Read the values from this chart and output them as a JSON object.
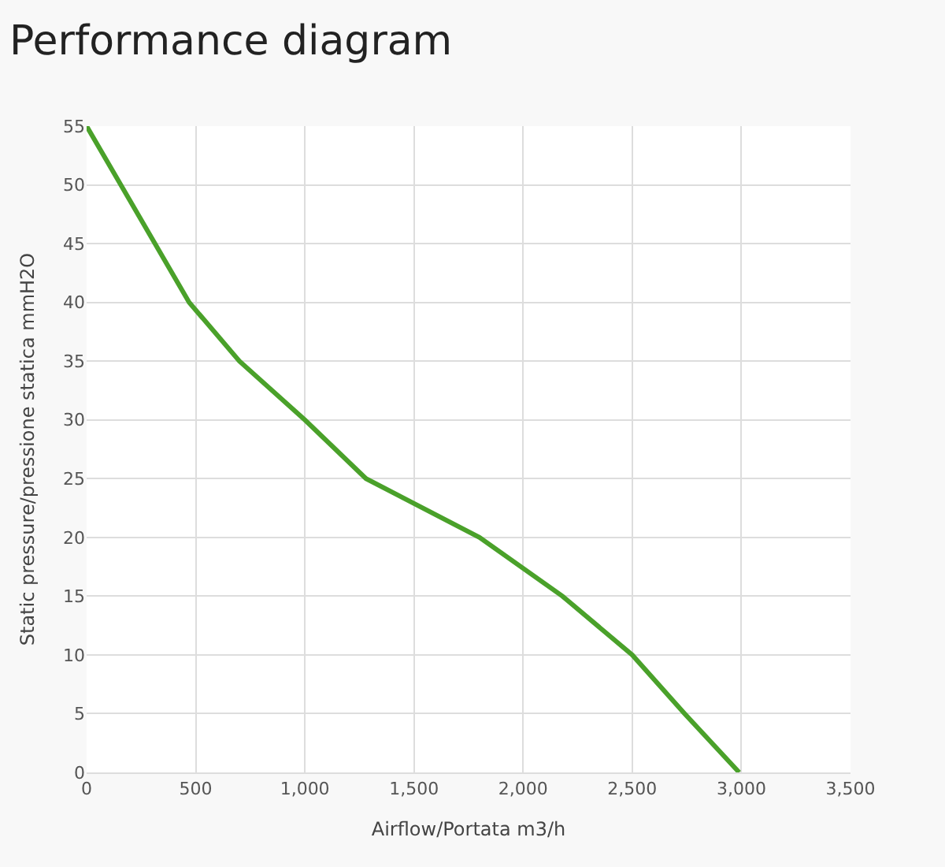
{
  "chart_data": {
    "type": "line",
    "title": "Performance diagram",
    "xlabel": "Airflow/Portata m3/h",
    "ylabel": "Static pressure/pressione statica mmH2O",
    "x": [
      0,
      470,
      700,
      1000,
      1280,
      1800,
      2180,
      2500,
      2740,
      2990
    ],
    "series": [
      {
        "color": "#4aa12a",
        "values": [
          55,
          40,
          35,
          30,
          25,
          20,
          15,
          10,
          5,
          0
        ]
      }
    ],
    "xlim": [
      0,
      3500
    ],
    "ylim": [
      0,
      55
    ],
    "xticks": [
      0,
      500,
      {
        "value": 1000,
        "label": "1,000"
      },
      {
        "value": 1500,
        "label": "1,500"
      },
      {
        "value": 2000,
        "label": "2,000"
      },
      {
        "value": 2500,
        "label": "2,500"
      },
      {
        "value": 3000,
        "label": "3,000"
      },
      {
        "value": 3500,
        "label": "3,500"
      }
    ],
    "yticks": [
      0,
      5,
      10,
      15,
      20,
      25,
      30,
      35,
      40,
      45,
      50,
      55
    ],
    "grid": true,
    "marker": "none",
    "line_style": "solid"
  }
}
